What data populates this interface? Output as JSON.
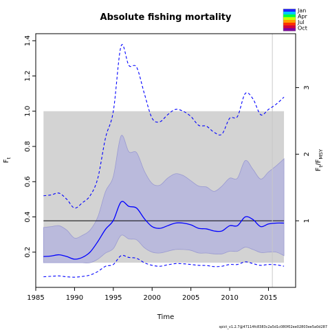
{
  "chart_data": {
    "type": "line",
    "title": "Absolute fishing mortality",
    "xlabel": "Time",
    "ylabel_left": "F",
    "ylabel_left_sub": "t",
    "ylabel_right": "F",
    "ylabel_right_sub": "t",
    "ylabel_right_denom": "F",
    "ylabel_right_denom_sub": "MSY",
    "xlim": [
      1985,
      2018.5
    ],
    "ylim": [
      0.0,
      1.44
    ],
    "xticks": [
      1985,
      1990,
      1995,
      2000,
      2005,
      2010,
      2015
    ],
    "yticks_left": [
      0.2,
      0.4,
      0.6,
      0.8,
      1.0,
      1.2,
      1.4
    ],
    "yticks_left_labels": [
      "0.2",
      "0.4",
      "0.6",
      "0.8",
      "1.0",
      "1.2",
      "1.4"
    ],
    "yticks_right": [
      1,
      2,
      3
    ],
    "yticks_right_labels": [
      "1",
      "2",
      "3"
    ],
    "fmsy": 0.378,
    "grey_box": {
      "x0": 1986,
      "x1": 2017,
      "y0": 0.14,
      "y1": 1.0
    },
    "last_obs_x": 2015.5,
    "x": [
      1986,
      1987,
      1988,
      1989,
      1990,
      1991,
      1992,
      1993,
      1994,
      1995,
      1996,
      1997,
      1998,
      1999,
      2000,
      2001,
      2002,
      2003,
      2004,
      2005,
      2006,
      2007,
      2008,
      2009,
      2010,
      2011,
      2012,
      2013,
      2014,
      2015,
      2016,
      2017
    ],
    "series": [
      {
        "role": "median",
        "color": "#0000ff",
        "dash": "solid",
        "values": [
          0.175,
          0.178,
          0.185,
          0.175,
          0.16,
          0.17,
          0.2,
          0.26,
          0.33,
          0.38,
          0.485,
          0.46,
          0.45,
          0.39,
          0.345,
          0.335,
          0.35,
          0.365,
          0.365,
          0.355,
          0.335,
          0.332,
          0.32,
          0.32,
          0.35,
          0.35,
          0.4,
          0.385,
          0.345,
          0.36,
          0.365,
          0.365
        ]
      },
      {
        "role": "ci_upper",
        "color": "#0000ff",
        "dash": "dashed",
        "values": [
          0.52,
          0.525,
          0.535,
          0.5,
          0.45,
          0.48,
          0.52,
          0.62,
          0.85,
          1.0,
          1.37,
          1.26,
          1.25,
          1.1,
          0.96,
          0.94,
          0.98,
          1.01,
          1.0,
          0.97,
          0.92,
          0.915,
          0.88,
          0.87,
          0.96,
          0.97,
          1.1,
          1.07,
          0.98,
          1.01,
          1.04,
          1.08
        ]
      },
      {
        "role": "ci_lower",
        "color": "#0000ff",
        "dash": "dashed",
        "values": [
          0.06,
          0.063,
          0.065,
          0.06,
          0.058,
          0.062,
          0.07,
          0.09,
          0.12,
          0.13,
          0.18,
          0.17,
          0.165,
          0.14,
          0.125,
          0.12,
          0.128,
          0.135,
          0.134,
          0.13,
          0.125,
          0.124,
          0.118,
          0.12,
          0.13,
          0.13,
          0.145,
          0.135,
          0.125,
          0.13,
          0.128,
          0.12
        ]
      }
    ],
    "band": {
      "upper": [
        0.34,
        0.345,
        0.35,
        0.325,
        0.28,
        0.295,
        0.325,
        0.4,
        0.545,
        0.63,
        0.86,
        0.77,
        0.765,
        0.66,
        0.59,
        0.58,
        0.62,
        0.645,
        0.635,
        0.605,
        0.575,
        0.57,
        0.545,
        0.575,
        0.62,
        0.62,
        0.72,
        0.67,
        0.615,
        0.655,
        0.69,
        0.73
      ],
      "lower": [
        0.14,
        0.14,
        0.14,
        0.14,
        0.14,
        0.14,
        0.14,
        0.16,
        0.195,
        0.22,
        0.295,
        0.275,
        0.27,
        0.225,
        0.2,
        0.195,
        0.205,
        0.215,
        0.215,
        0.21,
        0.195,
        0.195,
        0.19,
        0.19,
        0.205,
        0.205,
        0.228,
        0.215,
        0.198,
        0.2,
        0.2,
        0.18
      ],
      "fill": "#b8b8dc"
    },
    "legend": {
      "placement": "top-right",
      "labels": [
        "Jan",
        "Apr",
        "Jul",
        "Oct"
      ],
      "colors": [
        "#2020ff",
        "#00c8ff",
        "#00ff40",
        "#c8ff00",
        "#ffa000",
        "#ff3000",
        "#d00040",
        "#8000a0"
      ]
    },
    "colors": {
      "grey_box": "#d3d3d3",
      "fmsy_line": "#000000",
      "last_obs_line": "#c8c8c8"
    }
  },
  "footer": "spict_v1.2.7@47114fc8383c2a5d1c080f02ee02803ee5a0d287"
}
